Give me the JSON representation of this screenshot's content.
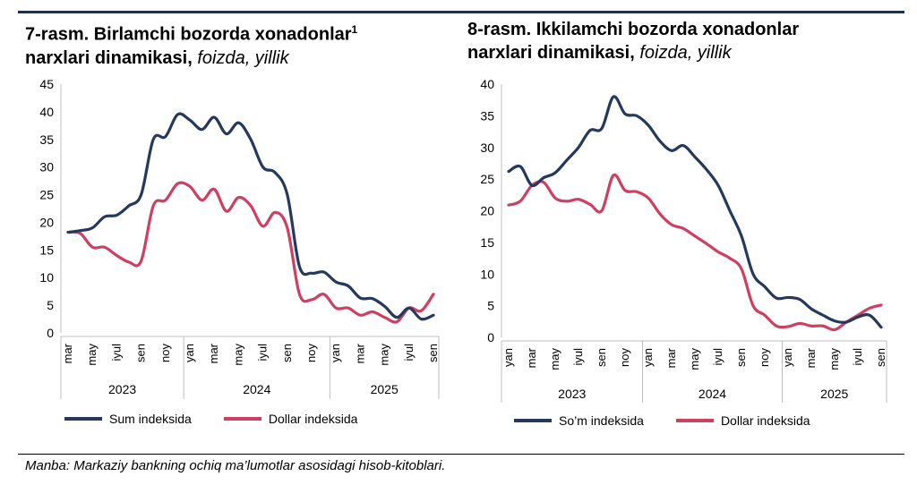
{
  "source": "Manba: Markaziy bankning ochiq ma’lumotlar asosidagi hisob-kitoblari.",
  "colors": {
    "sum": "#24395c",
    "dollar": "#cf3f62",
    "axis": "#bfbfbf",
    "rule": "#1f2f4f"
  },
  "chart_data": [
    {
      "type": "line",
      "title": "7-rasm. Birlamchi bozorda xonadonlar",
      "title_sup": "1",
      "title_line2": "narxlari dinamikasi,",
      "title_unit": "foizda, yillik",
      "ylim": [
        0,
        45
      ],
      "yticks": [
        0,
        5,
        10,
        15,
        20,
        25,
        30,
        35,
        40,
        45
      ],
      "x_tick_labels": [
        "mar",
        "may",
        "iyul",
        "sen",
        "noy",
        "yan",
        "mar",
        "may",
        "iyul",
        "sen",
        "noy",
        "yan",
        "mar",
        "may",
        "iyul",
        "sen"
      ],
      "year_groups": [
        {
          "label": "2023",
          "start": 0,
          "end": 10
        },
        {
          "label": "2024",
          "start": 10,
          "end": 22
        },
        {
          "label": "2025",
          "start": 22,
          "end": 31
        }
      ],
      "series": [
        {
          "name": "Sum indeksida",
          "color": "#24395c",
          "values": [
            18.2,
            18.5,
            19.0,
            21.0,
            21.3,
            23.0,
            25.0,
            35.0,
            35.5,
            39.5,
            38.5,
            36.8,
            39.0,
            36.0,
            38.0,
            35.0,
            30.0,
            29.0,
            25.0,
            12.0,
            10.8,
            11.0,
            9.2,
            8.5,
            6.3,
            6.2,
            4.8,
            2.8,
            4.5,
            2.5,
            3.2
          ]
        },
        {
          "name": "Dollar indeksida",
          "color": "#cf3f62",
          "values": [
            18.2,
            18.0,
            15.5,
            15.5,
            14.0,
            12.8,
            13.0,
            23.0,
            24.0,
            27.0,
            26.5,
            24.0,
            26.0,
            22.0,
            24.5,
            23.0,
            19.3,
            21.8,
            19.0,
            7.0,
            6.0,
            7.0,
            4.5,
            4.5,
            3.2,
            3.8,
            2.8,
            2.0,
            4.5,
            4.0,
            7.0
          ]
        }
      ]
    },
    {
      "type": "line",
      "title": "8-rasm. Ikkilamchi bozorda xonadonlar",
      "title_line2": "narxlari dinamikasi,",
      "title_unit": "foizda, yillik",
      "ylim": [
        0,
        40
      ],
      "yticks": [
        0,
        5,
        10,
        15,
        20,
        25,
        30,
        35,
        40
      ],
      "x_tick_labels": [
        "yan",
        "mar",
        "may",
        "iyul",
        "sen",
        "noy",
        "yan",
        "mar",
        "may",
        "iyul",
        "sen",
        "noy",
        "yan",
        "mar",
        "may",
        "iyul",
        "sen"
      ],
      "year_groups": [
        {
          "label": "2023",
          "start": 0,
          "end": 12
        },
        {
          "label": "2024",
          "start": 12,
          "end": 24
        },
        {
          "label": "2025",
          "start": 24,
          "end": 33
        }
      ],
      "series": [
        {
          "name": "So’m indeksida",
          "color": "#24395c",
          "values": [
            26.2,
            27.0,
            24.0,
            25.2,
            26.0,
            28.0,
            30.0,
            32.7,
            33.0,
            38.0,
            35.3,
            35.0,
            33.5,
            31.0,
            29.5,
            30.3,
            28.5,
            26.5,
            24.0,
            20.0,
            16.0,
            10.0,
            8.0,
            6.2,
            6.3,
            6.0,
            4.5,
            3.5,
            2.6,
            2.4,
            3.2,
            3.5,
            1.6
          ]
        },
        {
          "name": "Dollar indeksida",
          "color": "#cf3f62",
          "values": [
            20.9,
            21.5,
            24.0,
            24.5,
            22.0,
            21.5,
            21.8,
            21.0,
            20.0,
            25.6,
            23.2,
            23.0,
            22.0,
            19.5,
            17.8,
            17.2,
            16.0,
            14.8,
            13.5,
            12.5,
            10.8,
            5.0,
            3.5,
            1.8,
            1.7,
            2.2,
            1.8,
            1.8,
            1.2,
            2.4,
            3.5,
            4.6,
            5.1
          ]
        }
      ]
    }
  ]
}
